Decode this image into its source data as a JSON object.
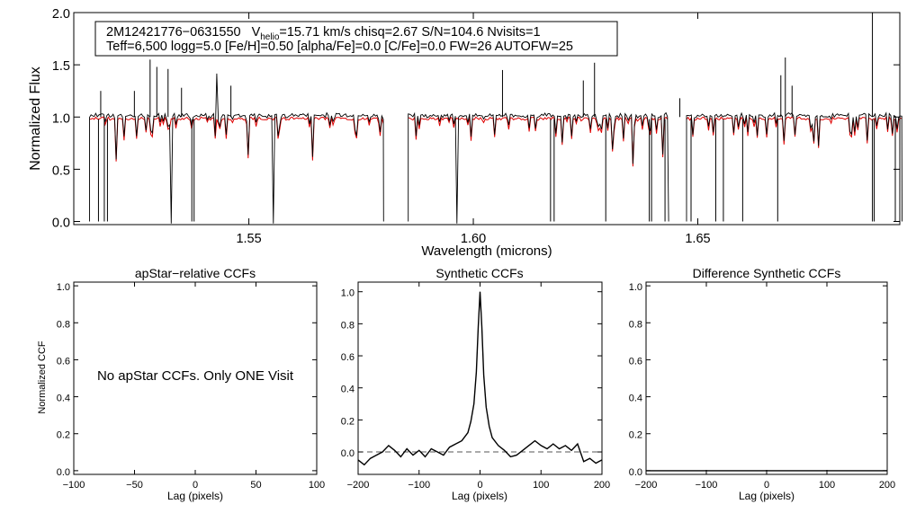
{
  "chart_data": [
    {
      "id": "spectrum",
      "type": "line",
      "ylabel": "Normalized Flux",
      "xlabel": "Wavelength (microns)",
      "xlim": [
        1.511,
        1.695
      ],
      "ylim": [
        -0.03,
        2.0
      ],
      "xticks": [
        1.55,
        1.6,
        1.65
      ],
      "xtick_labels": [
        "1.55",
        "1.60",
        "1.65"
      ],
      "yticks": [
        0.0,
        0.5,
        1.0,
        1.5,
        2.0
      ],
      "ytick_labels": [
        "0.0",
        "0.5",
        "1.0",
        "1.5",
        "2.0"
      ],
      "chips": [
        [
          1.5145,
          1.58
        ],
        [
          1.5855,
          1.6435
        ],
        [
          1.6475,
          1.6955
        ]
      ],
      "info": {
        "id": "2M12421776−0631550",
        "vhelio_prefix": "V",
        "vhelio_sub": "helio",
        "vhelio_rest": "=15.71 km/s  chisq=2.67  S/N=104.6  Nvisits=1",
        "line2": "Teff=6,500 logg=5.0 [Fe/H]=0.50 [alpha/Fe]=0.0 [C/Fe]=0.0 FW=26 AUTOFW=25"
      },
      "series": [],
      "colors": {
        "observed": "#000000",
        "model": "#e00000"
      }
    },
    {
      "id": "apstar",
      "type": "line",
      "title": "apStar−relative CCFs",
      "xlabel": "Lag (pixels)",
      "ylabel": "Normalized CCF",
      "xlim": [
        -100,
        100
      ],
      "ylim": [
        -0.02,
        1.02
      ],
      "xticks": [
        -100,
        -50,
        0,
        50,
        100
      ],
      "xtick_labels": [
        "−100",
        "−50",
        "0",
        "50",
        "100"
      ],
      "yticks": [
        0.0,
        0.2,
        0.4,
        0.6,
        0.8,
        1.0
      ],
      "ytick_labels": [
        "0.0",
        "0.2",
        "0.4",
        "0.6",
        "0.8",
        "1.0"
      ],
      "message": "No apStar CCFs.  Only ONE Visit",
      "series": []
    },
    {
      "id": "synthetic",
      "type": "line",
      "title": "Synthetic CCFs",
      "xlabel": "Lag (pixels)",
      "xlim": [
        -200,
        200
      ],
      "ylim": [
        -0.14,
        1.06
      ],
      "xticks": [
        -200,
        -100,
        0,
        100,
        200
      ],
      "xtick_labels": [
        "−200",
        "−100",
        "0",
        "100",
        "200"
      ],
      "yticks": [
        0.0,
        0.2,
        0.4,
        0.6,
        0.8,
        1.0
      ],
      "ytick_labels": [
        "0.0",
        "0.2",
        "0.4",
        "0.6",
        "0.8",
        "1.0"
      ],
      "dashed_y": 0.0,
      "series": [
        {
          "x": [
            -200,
            -190,
            -180,
            -170,
            -160,
            -150,
            -140,
            -130,
            -120,
            -110,
            -100,
            -90,
            -80,
            -70,
            -60,
            -50,
            -40,
            -30,
            -20,
            -15,
            -10,
            -6,
            -3,
            0,
            3,
            6,
            10,
            15,
            20,
            30,
            40,
            50,
            60,
            70,
            80,
            90,
            100,
            110,
            120,
            130,
            140,
            150,
            160,
            170,
            180,
            190,
            200
          ],
          "y": [
            -0.05,
            -0.08,
            -0.04,
            -0.02,
            0.0,
            0.04,
            0.01,
            -0.03,
            0.02,
            -0.02,
            0.01,
            -0.03,
            0.02,
            0.0,
            -0.02,
            0.03,
            0.05,
            0.07,
            0.12,
            0.19,
            0.3,
            0.5,
            0.78,
            1.0,
            0.78,
            0.48,
            0.28,
            0.16,
            0.09,
            0.04,
            0.01,
            -0.03,
            -0.02,
            0.01,
            0.04,
            0.07,
            0.04,
            0.02,
            0.05,
            0.02,
            0.04,
            0.01,
            0.05,
            -0.06,
            -0.04,
            -0.07,
            -0.05
          ]
        }
      ]
    },
    {
      "id": "difference",
      "type": "line",
      "title": "Difference Synthetic CCFs",
      "xlabel": "Lag (pixels)",
      "xlim": [
        -200,
        200
      ],
      "ylim": [
        -0.02,
        1.02
      ],
      "xticks": [
        -200,
        -100,
        0,
        100,
        200
      ],
      "xtick_labels": [
        "−200",
        "−100",
        "0",
        "100",
        "200"
      ],
      "yticks": [
        0.0,
        0.2,
        0.4,
        0.6,
        0.8,
        1.0
      ],
      "ytick_labels": [
        "0.0",
        "0.2",
        "0.4",
        "0.6",
        "0.8",
        "1.0"
      ],
      "series": [
        {
          "x": [
            -200,
            200
          ],
          "y": [
            0.0,
            0.0
          ]
        }
      ]
    }
  ]
}
